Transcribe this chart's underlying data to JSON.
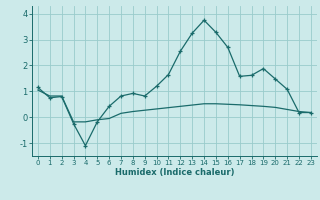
{
  "line1_x": [
    0,
    1,
    2,
    3,
    4,
    5,
    6,
    7,
    8,
    9,
    10,
    11,
    12,
    13,
    14,
    15,
    16,
    17,
    18,
    19,
    20,
    21,
    22,
    23
  ],
  "line1_y": [
    1.15,
    0.75,
    0.8,
    -0.25,
    -1.1,
    -0.18,
    0.42,
    0.82,
    0.92,
    0.82,
    1.2,
    1.65,
    2.55,
    3.25,
    3.75,
    3.28,
    2.7,
    1.58,
    1.62,
    1.88,
    1.48,
    1.08,
    0.18,
    0.18
  ],
  "line2_x": [
    0,
    1,
    2,
    3,
    4,
    5,
    6,
    7,
    8,
    9,
    10,
    11,
    12,
    13,
    14,
    15,
    16,
    17,
    18,
    19,
    20,
    21,
    22,
    23
  ],
  "line2_y": [
    1.05,
    0.82,
    0.82,
    -0.18,
    -0.18,
    -0.1,
    -0.05,
    0.15,
    0.22,
    0.27,
    0.32,
    0.37,
    0.42,
    0.47,
    0.52,
    0.52,
    0.5,
    0.48,
    0.45,
    0.42,
    0.38,
    0.3,
    0.22,
    0.18
  ],
  "color": "#1a6b6b",
  "bg_color": "#cceaea",
  "grid_color": "#99cccc",
  "xlabel": "Humidex (Indice chaleur)",
  "ylim": [
    -1.5,
    4.3
  ],
  "xlim": [
    -0.5,
    23.5
  ],
  "yticks": [
    -1,
    0,
    1,
    2,
    3,
    4
  ],
  "xticks": [
    0,
    1,
    2,
    3,
    4,
    5,
    6,
    7,
    8,
    9,
    10,
    11,
    12,
    13,
    14,
    15,
    16,
    17,
    18,
    19,
    20,
    21,
    22,
    23
  ]
}
